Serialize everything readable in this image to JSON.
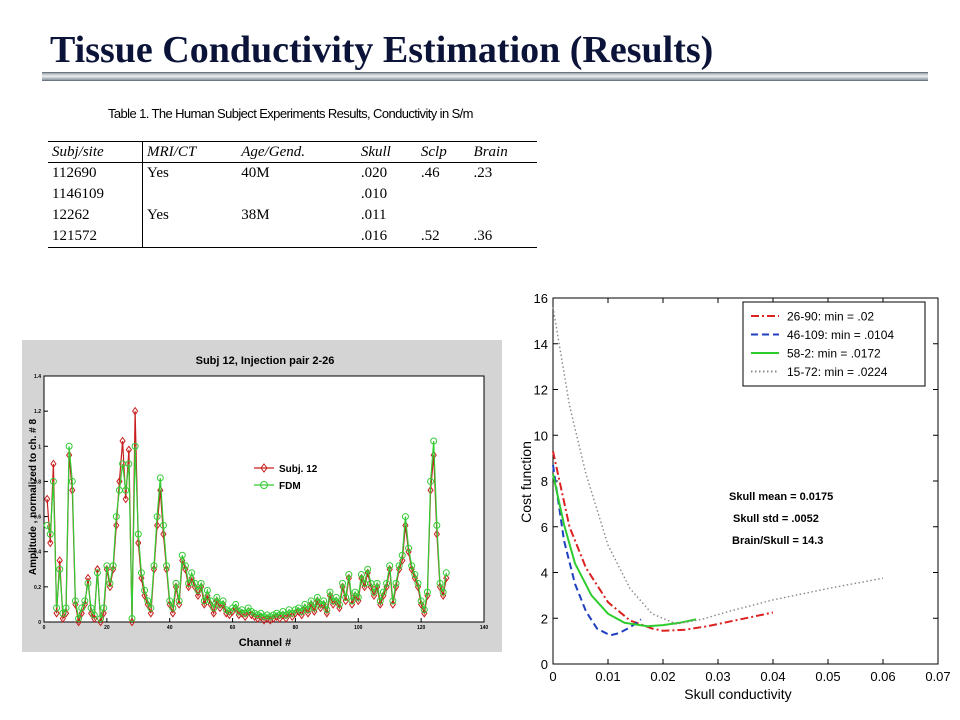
{
  "slide": {
    "title": "Tissue Conductivity Estimation (Results)"
  },
  "table": {
    "caption": "Table 1. The Human Subject Experiments Results, Conductivity in S/m",
    "headers": [
      "Subj/site",
      "MRI/CT",
      "Age/Gend.",
      "Skull",
      "Sclp",
      "Brain"
    ],
    "rows": [
      [
        "112690",
        "Yes",
        "40M",
        ".020",
        ".46",
        ".23"
      ],
      [
        "1146109",
        "",
        "",
        ".010",
        "",
        ""
      ],
      [
        "12262",
        "Yes",
        "38M",
        ".011",
        "",
        ""
      ],
      [
        "121572",
        "",
        "",
        ".016",
        ".52",
        ".36"
      ]
    ]
  },
  "chart_data": [
    {
      "type": "line",
      "title": "Subj 12, Injection pair 2-26",
      "xlabel": "Channel #",
      "ylabel": "Amplitude , normalized to ch. # 8",
      "xlim": [
        0,
        140
      ],
      "ylim": [
        0,
        1.4
      ],
      "xticks": [
        0,
        20,
        40,
        60,
        80,
        100,
        120,
        140
      ],
      "yticks": [
        0,
        0.2,
        0.4,
        0.6,
        0.8,
        1,
        1.2,
        1.4
      ],
      "legend_position": "center-right",
      "series": [
        {
          "name": "Subj. 12",
          "color": "#c81e1e",
          "marker": "diamond",
          "x": [
            1,
            2,
            3,
            4,
            5,
            6,
            7,
            8,
            9,
            10,
            11,
            12,
            13,
            14,
            15,
            16,
            17,
            18,
            19,
            20,
            21,
            22,
            23,
            24,
            25,
            26,
            27,
            28,
            29,
            30,
            31,
            32,
            33,
            34,
            35,
            36,
            37,
            38,
            39,
            40,
            41,
            42,
            43,
            44,
            45,
            46,
            47,
            48,
            49,
            50,
            51,
            52,
            53,
            54,
            55,
            56,
            57,
            58,
            59,
            60,
            61,
            62,
            63,
            64,
            65,
            66,
            67,
            68,
            69,
            70,
            71,
            72,
            73,
            74,
            75,
            76,
            77,
            78,
            79,
            80,
            81,
            82,
            83,
            84,
            85,
            86,
            87,
            88,
            89,
            90,
            91,
            92,
            93,
            94,
            95,
            96,
            97,
            98,
            99,
            100,
            101,
            102,
            103,
            104,
            105,
            106,
            107,
            108,
            109,
            110,
            111,
            112,
            113,
            114,
            115,
            116,
            117,
            118,
            119,
            120,
            121,
            122,
            123,
            124,
            125,
            126,
            127,
            128
          ],
          "y": [
            0.7,
            0.45,
            0.9,
            0.05,
            0.35,
            0.02,
            0.05,
            0.95,
            0.75,
            0.1,
            0.0,
            0.05,
            0.1,
            0.25,
            0.05,
            0.02,
            0.3,
            0.0,
            0.05,
            0.3,
            0.2,
            0.3,
            0.55,
            0.8,
            1.03,
            0.7,
            0.98,
            0.0,
            1.2,
            0.45,
            0.25,
            0.15,
            0.1,
            0.05,
            0.3,
            0.55,
            0.75,
            0.5,
            0.3,
            0.1,
            0.05,
            0.2,
            0.1,
            0.35,
            0.3,
            0.2,
            0.25,
            0.2,
            0.15,
            0.2,
            0.1,
            0.15,
            0.1,
            0.05,
            0.12,
            0.08,
            0.1,
            0.05,
            0.04,
            0.06,
            0.08,
            0.04,
            0.05,
            0.03,
            0.06,
            0.04,
            0.03,
            0.02,
            0.03,
            0.01,
            0.02,
            0.01,
            0.02,
            0.03,
            0.02,
            0.04,
            0.02,
            0.05,
            0.03,
            0.05,
            0.06,
            0.04,
            0.08,
            0.05,
            0.1,
            0.06,
            0.12,
            0.08,
            0.1,
            0.05,
            0.15,
            0.1,
            0.12,
            0.08,
            0.2,
            0.12,
            0.25,
            0.1,
            0.15,
            0.12,
            0.25,
            0.2,
            0.28,
            0.2,
            0.15,
            0.2,
            0.1,
            0.15,
            0.2,
            0.3,
            0.1,
            0.2,
            0.3,
            0.35,
            0.55,
            0.4,
            0.3,
            0.25,
            0.2,
            0.1,
            0.05,
            0.15,
            0.75,
            0.95,
            0.5,
            0.2,
            0.15,
            0.25
          ]
        },
        {
          "name": "FDM",
          "color": "#33cc33",
          "marker": "circle",
          "x": [
            1,
            2,
            3,
            4,
            5,
            6,
            7,
            8,
            9,
            10,
            11,
            12,
            13,
            14,
            15,
            16,
            17,
            18,
            19,
            20,
            21,
            22,
            23,
            24,
            25,
            26,
            27,
            28,
            29,
            30,
            31,
            32,
            33,
            34,
            35,
            36,
            37,
            38,
            39,
            40,
            41,
            42,
            43,
            44,
            45,
            46,
            47,
            48,
            49,
            50,
            51,
            52,
            53,
            54,
            55,
            56,
            57,
            58,
            59,
            60,
            61,
            62,
            63,
            64,
            65,
            66,
            67,
            68,
            69,
            70,
            71,
            72,
            73,
            74,
            75,
            76,
            77,
            78,
            79,
            80,
            81,
            82,
            83,
            84,
            85,
            86,
            87,
            88,
            89,
            90,
            91,
            92,
            93,
            94,
            95,
            96,
            97,
            98,
            99,
            100,
            101,
            102,
            103,
            104,
            105,
            106,
            107,
            108,
            109,
            110,
            111,
            112,
            113,
            114,
            115,
            116,
            117,
            118,
            119,
            120,
            121,
            122,
            123,
            124,
            125,
            126,
            127,
            128
          ],
          "y": [
            0.55,
            0.5,
            0.8,
            0.08,
            0.3,
            0.05,
            0.08,
            1.0,
            0.8,
            0.12,
            0.02,
            0.08,
            0.12,
            0.22,
            0.08,
            0.04,
            0.28,
            0.02,
            0.08,
            0.32,
            0.22,
            0.32,
            0.6,
            0.75,
            0.9,
            0.75,
            0.9,
            0.02,
            1.0,
            0.5,
            0.28,
            0.18,
            0.12,
            0.08,
            0.32,
            0.6,
            0.82,
            0.55,
            0.32,
            0.12,
            0.08,
            0.22,
            0.12,
            0.38,
            0.32,
            0.22,
            0.28,
            0.22,
            0.18,
            0.22,
            0.12,
            0.18,
            0.12,
            0.08,
            0.14,
            0.1,
            0.12,
            0.07,
            0.06,
            0.08,
            0.1,
            0.06,
            0.07,
            0.05,
            0.08,
            0.06,
            0.05,
            0.04,
            0.05,
            0.03,
            0.04,
            0.03,
            0.04,
            0.05,
            0.04,
            0.06,
            0.04,
            0.07,
            0.05,
            0.07,
            0.08,
            0.06,
            0.1,
            0.07,
            0.12,
            0.08,
            0.14,
            0.1,
            0.12,
            0.07,
            0.17,
            0.12,
            0.14,
            0.1,
            0.22,
            0.14,
            0.27,
            0.12,
            0.17,
            0.14,
            0.27,
            0.22,
            0.3,
            0.22,
            0.17,
            0.22,
            0.12,
            0.17,
            0.22,
            0.32,
            0.12,
            0.22,
            0.32,
            0.38,
            0.6,
            0.42,
            0.32,
            0.27,
            0.22,
            0.12,
            0.07,
            0.17,
            0.8,
            1.03,
            0.55,
            0.22,
            0.17,
            0.28
          ]
        }
      ]
    },
    {
      "type": "line",
      "title": "",
      "xlabel": "Skull conductivity",
      "ylabel": "Cost function",
      "xlim": [
        0,
        0.07
      ],
      "ylim": [
        0,
        16
      ],
      "xticks": [
        0,
        0.01,
        0.02,
        0.03,
        0.04,
        0.05,
        0.06,
        0.07
      ],
      "xticklabels": [
        "0",
        "0.01",
        "0.02",
        "0.03",
        "0.04",
        "0.05",
        "0.06",
        "0.07"
      ],
      "yticks": [
        0,
        2,
        4,
        6,
        8,
        10,
        12,
        14,
        16
      ],
      "legend_position": "top-right",
      "annotations": [
        "Skull mean = 0.0175",
        "Skull std = .0052",
        "Brain/Skull = 14.3"
      ],
      "series": [
        {
          "name": "26-90:  min = .02",
          "color": "#dd2222",
          "dash": "dashdot",
          "x": [
            0.0,
            0.003,
            0.006,
            0.01,
            0.014,
            0.018,
            0.02,
            0.024,
            0.028,
            0.032,
            0.036,
            0.04
          ],
          "y": [
            9.3,
            6.0,
            4.2,
            2.7,
            1.9,
            1.55,
            1.45,
            1.5,
            1.65,
            1.85,
            2.05,
            2.25
          ]
        },
        {
          "name": "46-109: min = .0104",
          "color": "#1f3fbf",
          "dash": "dashed",
          "x": [
            0.0,
            0.002,
            0.004,
            0.006,
            0.008,
            0.0104,
            0.012,
            0.014,
            0.016
          ],
          "y": [
            8.7,
            5.4,
            3.5,
            2.3,
            1.55,
            1.25,
            1.35,
            1.6,
            1.95
          ]
        },
        {
          "name": "58-2:      min = .0172",
          "color": "#2ecc2e",
          "dash": "solid",
          "x": [
            0.0,
            0.002,
            0.004,
            0.007,
            0.01,
            0.013,
            0.0172,
            0.02,
            0.023,
            0.026
          ],
          "y": [
            8.3,
            6.1,
            4.4,
            3.0,
            2.2,
            1.8,
            1.65,
            1.7,
            1.8,
            1.95
          ]
        },
        {
          "name": "15-72:  min = .0224",
          "color": "#888888",
          "dash": "dotted",
          "x": [
            0.0,
            0.003,
            0.006,
            0.01,
            0.014,
            0.018,
            0.0224,
            0.027,
            0.032,
            0.04,
            0.05,
            0.06
          ],
          "y": [
            15.6,
            11.3,
            8.3,
            5.2,
            3.3,
            2.2,
            1.75,
            1.95,
            2.3,
            2.8,
            3.3,
            3.75
          ]
        }
      ]
    }
  ]
}
